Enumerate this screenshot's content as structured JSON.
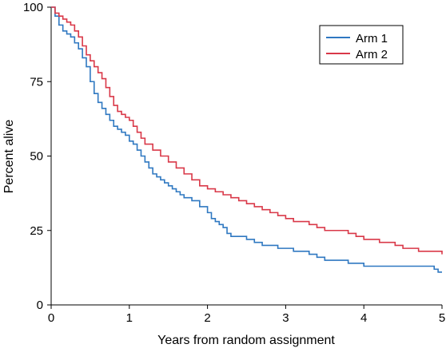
{
  "chart_data": {
    "type": "line",
    "line_style": "step",
    "title": "",
    "xlabel": "Years from random assignment",
    "ylabel": "Percent alive",
    "xlim": [
      0,
      5
    ],
    "ylim": [
      0,
      100
    ],
    "x_ticks": [
      0,
      1,
      2,
      3,
      4,
      5
    ],
    "y_ticks": [
      0,
      25,
      50,
      75,
      100
    ],
    "x_tick_labels": [
      "0",
      "1",
      "2",
      "3",
      "4",
      "5"
    ],
    "y_tick_labels": [
      "0",
      "25",
      "50",
      "75",
      "100"
    ],
    "grid": false,
    "legend_position": "top-right",
    "series": [
      {
        "name": "Arm 1",
        "color": "#2f78c1",
        "x": [
          0,
          0.05,
          0.1,
          0.15,
          0.2,
          0.25,
          0.3,
          0.35,
          0.4,
          0.45,
          0.5,
          0.55,
          0.6,
          0.65,
          0.7,
          0.75,
          0.8,
          0.85,
          0.9,
          0.95,
          1.0,
          1.05,
          1.1,
          1.15,
          1.2,
          1.25,
          1.3,
          1.35,
          1.4,
          1.45,
          1.5,
          1.55,
          1.6,
          1.65,
          1.7,
          1.8,
          1.9,
          2.0,
          2.05,
          2.1,
          2.15,
          2.2,
          2.25,
          2.3,
          2.4,
          2.5,
          2.6,
          2.7,
          2.8,
          2.9,
          3.0,
          3.1,
          3.2,
          3.3,
          3.4,
          3.5,
          3.6,
          3.7,
          3.8,
          3.9,
          4.0,
          4.2,
          4.4,
          4.6,
          4.8,
          4.9,
          4.95,
          5.0
        ],
        "y": [
          100,
          97,
          94,
          92,
          91,
          90,
          88,
          86,
          83,
          80,
          75,
          71,
          68,
          66,
          64,
          62,
          60,
          59,
          58,
          57,
          55,
          54,
          52,
          50,
          48,
          46,
          44,
          43,
          42,
          41,
          40,
          39,
          38,
          37,
          36,
          35,
          33,
          31,
          29,
          28,
          27,
          26,
          24,
          23,
          23,
          22,
          21,
          20,
          20,
          19,
          19,
          18,
          18,
          17,
          16,
          15,
          15,
          15,
          14,
          14,
          13,
          13,
          13,
          13,
          13,
          12,
          11,
          11
        ]
      },
      {
        "name": "Arm 2",
        "color": "#d93848",
        "x": [
          0,
          0.05,
          0.1,
          0.15,
          0.2,
          0.25,
          0.3,
          0.35,
          0.4,
          0.45,
          0.5,
          0.55,
          0.6,
          0.65,
          0.7,
          0.75,
          0.8,
          0.85,
          0.9,
          0.95,
          1.0,
          1.05,
          1.1,
          1.15,
          1.2,
          1.3,
          1.4,
          1.5,
          1.6,
          1.7,
          1.8,
          1.9,
          2.0,
          2.1,
          2.2,
          2.3,
          2.4,
          2.5,
          2.6,
          2.7,
          2.8,
          2.9,
          3.0,
          3.1,
          3.2,
          3.3,
          3.4,
          3.5,
          3.6,
          3.7,
          3.8,
          3.9,
          4.0,
          4.1,
          4.2,
          4.3,
          4.4,
          4.5,
          4.6,
          4.7,
          4.8,
          4.9,
          5.0
        ],
        "y": [
          100,
          98,
          97,
          96,
          95,
          94,
          92,
          90,
          87,
          84,
          82,
          80,
          78,
          76,
          73,
          70,
          67,
          65,
          64,
          63,
          62,
          60,
          58,
          56,
          54,
          52,
          50,
          48,
          46,
          44,
          42,
          40,
          39,
          38,
          37,
          36,
          35,
          34,
          33,
          32,
          31,
          30,
          29,
          28,
          28,
          27,
          26,
          25,
          25,
          25,
          24,
          23,
          22,
          22,
          21,
          21,
          20,
          19,
          19,
          18,
          18,
          18,
          17
        ]
      }
    ]
  }
}
